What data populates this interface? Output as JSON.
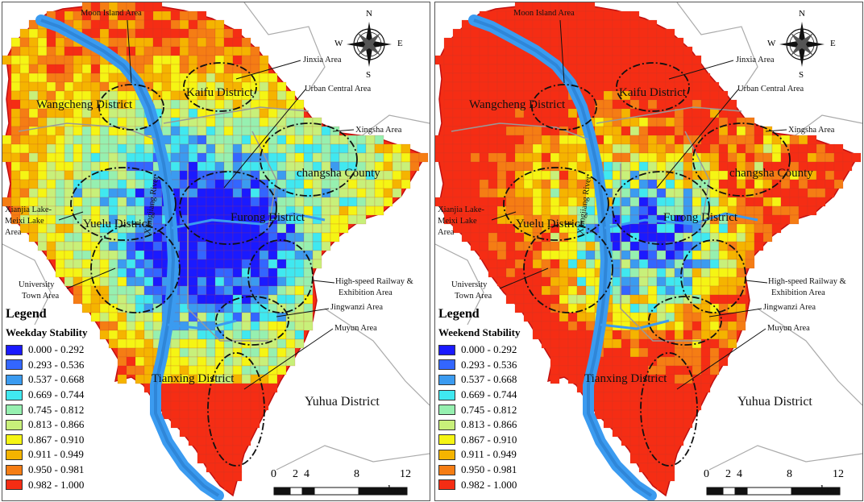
{
  "legend_colors": [
    "#1a1aff",
    "#3366ff",
    "#3b9bf0",
    "#40e8f0",
    "#96f0b0",
    "#c8f07a",
    "#f5f514",
    "#f5b400",
    "#f57d14",
    "#f52d14"
  ],
  "panels": [
    {
      "id": "weekday",
      "legend_title": "Legend",
      "stability_label": "Weekday Stability",
      "seed": 7,
      "stability_bias": 0.0,
      "labels": {
        "moon_island": "Moon Island Area",
        "jinxia": "Jinxia Area",
        "urban_central": "Urban Central Area",
        "xingsha": "Xingsha Area",
        "kaifu": "Kaifu District",
        "wangcheng": "Wangcheng District",
        "changsha": "changsha County",
        "xianjia1": "Xianjia Lake-",
        "xianjia2": "Meixi Lake",
        "xianjia3": "Area",
        "yuelu": "Yuelu District",
        "furong": "Furong District",
        "river": "Xiangjiang River",
        "university1": "University",
        "university2": "Town Area",
        "highspeed1": "High-speed Railway &",
        "highspeed2": "Exhibition Area",
        "jingwanzi": "Jingwanzi Area",
        "muyun": "Muyun Area",
        "tianxing": "Tianxing District",
        "yuhua": "Yuhua District"
      }
    },
    {
      "id": "weekend",
      "legend_title": "Legend",
      "stability_label": "Weekend Stability",
      "seed": 19,
      "stability_bias": 0.35,
      "labels": {
        "moon_island": "Moon Island Area",
        "jinxia": "Jinxia Area",
        "urban_central": "Urban Central Area",
        "xingsha": "Xingsha Area",
        "kaifu": "Kaifu District",
        "wangcheng": "Wangcheng District",
        "changsha": "changsha County",
        "xianjia1": "Xianjia Lake-",
        "xianjia2": "Meixi Lake",
        "xianjia3": "Area",
        "yuelu": "Yuelu District",
        "furong": "Furong District",
        "river": "Xiangjiang River",
        "university1": "University",
        "university2": "Town Area",
        "highspeed1": "High-speed Railway &",
        "highspeed2": "Exhibition Area",
        "jingwanzi": "Jingwanzi Area",
        "muyun": "Muyun Area",
        "tianxing": "Tianxing District",
        "yuhua": "Yuhua District"
      }
    }
  ],
  "legend_ranges": [
    "0.000 - 0.292",
    "0.293 - 0.536",
    "0.537 - 0.668",
    "0.669 - 0.744",
    "0.745 - 0.812",
    "0.813 - 0.866",
    "0.867 - 0.910",
    "0.911 - 0.949",
    "0.950 - 0.981",
    "0.982 - 1.000"
  ],
  "scalebar": {
    "ticks": [
      "0",
      "2",
      "4",
      "8",
      "12"
    ],
    "unit": "km"
  },
  "compass": {
    "n": "N",
    "s": "S",
    "e": "E",
    "w": "W"
  }
}
